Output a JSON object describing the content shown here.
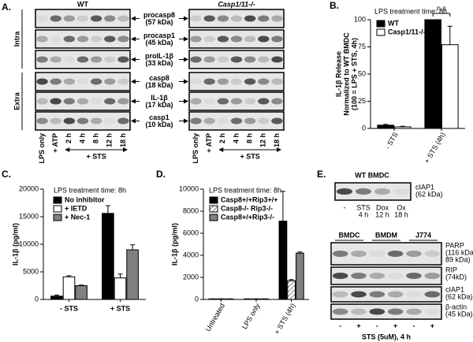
{
  "panel_a": {
    "label": "A.",
    "groups": [
      "WT",
      "Casp1/11-/-"
    ],
    "compartments": [
      "Intra",
      "Extra"
    ],
    "bands": [
      [
        "procasp8",
        "(57 kDa)"
      ],
      [
        "procasp1",
        "(45 kDa)"
      ],
      [
        "proIL-1β",
        "(33 kDa)"
      ],
      [
        "casp8",
        "(18 kDa)"
      ],
      [
        "IL-1β",
        "(17 kDa)"
      ],
      [
        "casp1",
        "(10 kDa)"
      ]
    ],
    "lanes": [
      "LPS only",
      "+ ATP",
      "2 h",
      "4 h",
      "8 h",
      "12 h",
      "18 h"
    ],
    "treatment": "+ STS"
  },
  "chart_data": [
    {
      "type": "bar",
      "label": "B.",
      "title": "LPS treatment time: 8h",
      "ylabel": [
        "IL-1β Release",
        "Normalized to WT BMDC",
        "(100 = LPS + STS, 4h)"
      ],
      "categories": [
        "- STS",
        "+ STS (4h)"
      ],
      "series": [
        {
          "name": "WT",
          "color": "#000000",
          "values": [
            3,
            100
          ],
          "errors": [
            0.8,
            0
          ]
        },
        {
          "name": "Casp1/11-/-",
          "color": "#ffffff",
          "values": [
            1.5,
            77
          ],
          "errors": [
            0.5,
            17
          ]
        }
      ],
      "ylim": [
        0,
        100
      ],
      "yticks": [
        0,
        25,
        50,
        75,
        100
      ],
      "annotation": "n.s",
      "legend": "top-left"
    },
    {
      "type": "bar",
      "label": "C.",
      "title": "LPS treatment time: 8h",
      "ylabel": [
        "IL-1β (pg/ml)"
      ],
      "categories": [
        "- STS",
        "+ STS"
      ],
      "series": [
        {
          "name": "No inhibitor",
          "color": "#000000",
          "values": [
            600,
            15600
          ],
          "errors": [
            200,
            1400
          ]
        },
        {
          "name": "+ IETD",
          "color": "#ffffff",
          "values": [
            4100,
            3900
          ],
          "errors": [
            200,
            700
          ]
        },
        {
          "name": "+ Nec-1",
          "color": "#808080",
          "values": [
            2500,
            9000
          ],
          "errors": [
            100,
            900
          ]
        }
      ],
      "ylim": [
        0,
        20000
      ],
      "yticks": [
        0,
        5000,
        10000,
        15000,
        20000
      ],
      "legend": "top-left"
    },
    {
      "type": "bar",
      "label": "D.",
      "title": "LPS treatment time: 8h",
      "ylabel": [
        "IL-1β (pg/ml)"
      ],
      "categories": [
        "Untreated",
        "LPS only",
        "+ STS (4h)"
      ],
      "series": [
        {
          "name": "Casp8+/+Rip3+/+",
          "color": "#000000",
          "values": [
            50,
            50,
            7100
          ],
          "errors": [
            0,
            0,
            2700
          ]
        },
        {
          "name": "Casp8-/- Rip3-/-",
          "color": "#ffffff",
          "pattern": "hatch",
          "values": [
            50,
            50,
            1700
          ],
          "errors": [
            0,
            0,
            100
          ]
        },
        {
          "name": "Casp8+/+Rip3-/-",
          "color": "#808080",
          "values": [
            50,
            50,
            4200
          ],
          "errors": [
            0,
            0,
            100
          ]
        }
      ],
      "ylim": [
        0,
        10000
      ],
      "yticks": [
        0,
        2000,
        4000,
        6000,
        8000,
        10000
      ],
      "legend": "top-left"
    }
  ],
  "panel_e": {
    "label": "E.",
    "title": "WT BMDC",
    "top_band": [
      "cIAP1",
      "(62 kDa)"
    ],
    "top_lanes": [
      [
        "-"
      ],
      [
        "STS",
        "4 h"
      ],
      [
        "Dox",
        "12 h"
      ],
      [
        "Ox",
        "18 h"
      ]
    ],
    "groups": [
      "BMDC",
      "BMDM",
      "J774"
    ],
    "bands": [
      [
        "PARP",
        "(116 kDa,",
        "89 kDa)"
      ],
      [
        "RIP",
        "(74kD)"
      ],
      [
        "cIAP1",
        "(62 kDa)"
      ],
      [
        "β-actin",
        "(45 kDa)"
      ]
    ],
    "signs": [
      "-",
      "+",
      "-",
      "+",
      "-",
      "+"
    ],
    "footer": "STS (5uM), 4 h"
  }
}
